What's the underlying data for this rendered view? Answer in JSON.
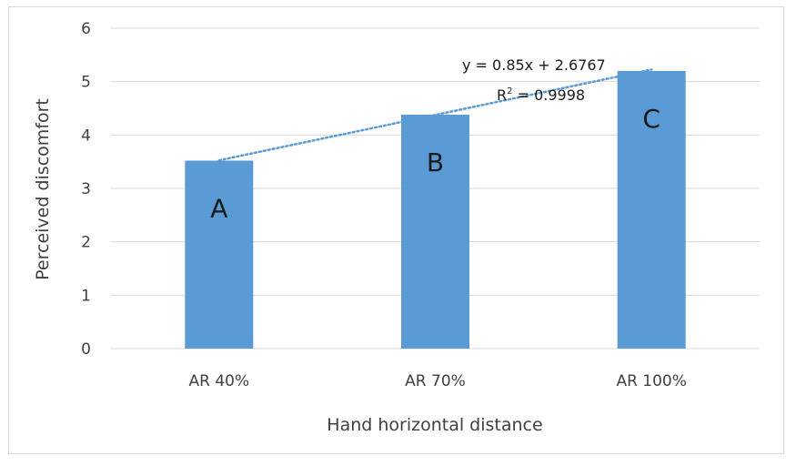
{
  "chart_data": {
    "type": "bar",
    "categories": [
      "AR 40%",
      "AR 70%",
      "AR 100%"
    ],
    "values": [
      3.52,
      4.38,
      5.2
    ],
    "bar_labels": [
      "A",
      "B",
      "C"
    ],
    "xlabel": "Hand horizontal distance",
    "ylabel": "Perceived discomfort",
    "ylim": [
      0,
      6
    ],
    "yticks": [
      "0",
      "1",
      "2",
      "3",
      "4",
      "5",
      "6"
    ],
    "grid": true,
    "trendline": {
      "type": "linear",
      "slope": 0.85,
      "intercept": 2.6767,
      "equation": "y = 0.85x + 2.6767",
      "r2_label": "R",
      "r2_sup": "2",
      "r2_value": " = 0.9998"
    },
    "colors": {
      "bar": "#5b9bd5",
      "trendline": "#5b9bd5",
      "grid": "#d9d9d9"
    }
  }
}
